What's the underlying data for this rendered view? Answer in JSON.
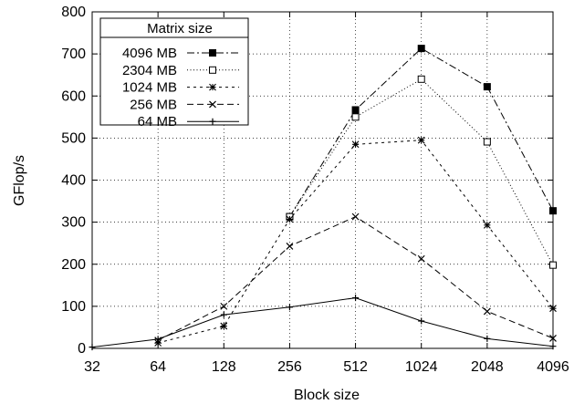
{
  "chart_data": {
    "type": "line",
    "xlabel": "Block size",
    "ylabel": "GFlop/s",
    "x_scale": "log2",
    "categories": [
      "32",
      "64",
      "128",
      "256",
      "512",
      "1024",
      "2048",
      "4096"
    ],
    "ylim": [
      0,
      800
    ],
    "yticks": [
      0,
      100,
      200,
      300,
      400,
      500,
      600,
      700,
      800
    ],
    "grid": true,
    "legend": {
      "title": "Matrix size",
      "placement": "top-left"
    },
    "series": [
      {
        "name": "4096 MB",
        "marker": "filled-square",
        "dash": "dash-dot",
        "values": [
          null,
          null,
          null,
          313,
          567,
          713,
          622,
          327
        ]
      },
      {
        "name": "2304 MB",
        "marker": "open-square",
        "dash": "dotted",
        "values": [
          null,
          null,
          null,
          313,
          550,
          640,
          491,
          198
        ]
      },
      {
        "name": "1024 MB",
        "marker": "asterisk",
        "dash": "short-dash",
        "values": [
          null,
          13,
          53,
          307,
          485,
          495,
          293,
          95
        ]
      },
      {
        "name": "256 MB",
        "marker": "cross",
        "dash": "dashed",
        "values": [
          null,
          19,
          100,
          243,
          313,
          213,
          88,
          24
        ]
      },
      {
        "name": "64 MB",
        "marker": "plus",
        "dash": "solid",
        "values": [
          3,
          22,
          80,
          98,
          120,
          65,
          23,
          5
        ]
      }
    ]
  }
}
